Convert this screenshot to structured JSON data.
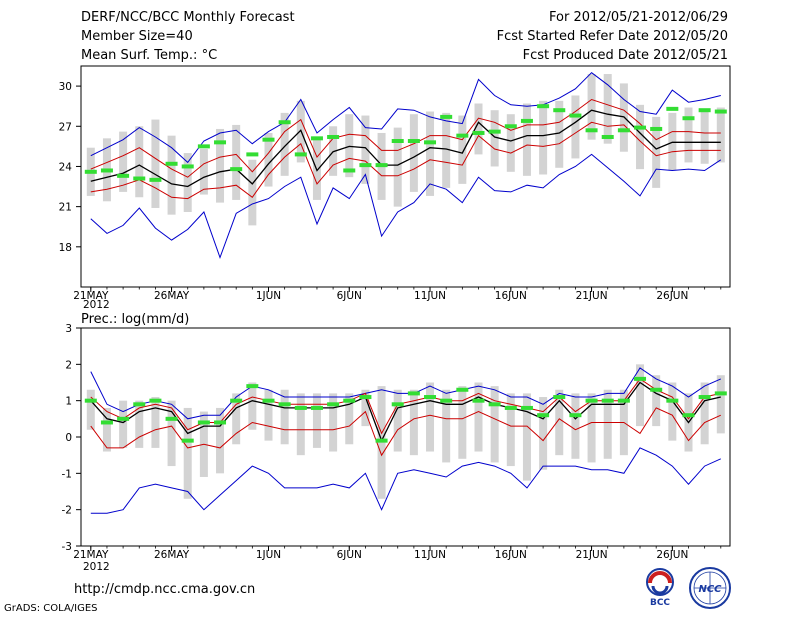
{
  "header": {
    "title": "DERF/NCC/BCC Monthly Forecast",
    "member_size": "Member Size=40",
    "variable": "Mean Surf. Temp.: °C",
    "forecast_period": "For 2012/05/21-2012/06/29",
    "start_refer_date": "Fcst Started Refer Date 2012/05/20",
    "produced_date": "Fcst Produced Date 2012/05/21"
  },
  "footer": {
    "url": "http://cmdp.ncc.cma.gov.cn",
    "credit": "GrADS: COLA/IGES"
  },
  "logos": {
    "bcc": "BCC",
    "ncc": "NCC"
  },
  "colors": {
    "ensemble_range": "#0000cc",
    "spread_band": "#cc0000",
    "ensemble_mean": "#000000",
    "box": "#d3d3d3",
    "marker": "#33dd33"
  },
  "chart_data": [
    {
      "type": "line",
      "title": "Mean Surf. Temp.: °C",
      "xlabel": "",
      "ylabel": "°C",
      "ylim": [
        15,
        31.5
      ],
      "yticks": [
        18,
        21,
        24,
        27,
        30
      ],
      "x_tick_labels": [
        "21MAY",
        "26MAY",
        "1JUN",
        "6JUN",
        "11JUN",
        "16JUN",
        "21JUN",
        "26JUN"
      ],
      "x_tick_days": [
        0,
        5,
        11,
        16,
        21,
        26,
        31,
        36
      ],
      "year_label": "2012",
      "days": [
        0,
        1,
        2,
        3,
        4,
        5,
        6,
        7,
        8,
        9,
        10,
        11,
        12,
        13,
        14,
        15,
        16,
        17,
        18,
        19,
        20,
        21,
        22,
        23,
        24,
        25,
        26,
        27,
        28,
        29,
        30,
        31,
        32,
        33,
        34,
        35,
        36,
        37,
        38,
        39
      ],
      "series": [
        {
          "name": "ensemble max",
          "color": "#0000cc",
          "values": [
            24.8,
            25.4,
            26.0,
            26.9,
            26.2,
            25.4,
            24.3,
            25.9,
            26.5,
            26.7,
            25.7,
            26.6,
            27.3,
            29.0,
            26.5,
            27.5,
            28.4,
            26.9,
            26.8,
            28.3,
            28.2,
            27.7,
            27.4,
            27.2,
            30.5,
            29.3,
            28.6,
            28.5,
            28.6,
            29.1,
            29.8,
            31.0,
            30.1,
            29.0,
            28.1,
            27.9,
            29.7,
            28.8,
            29.0,
            29.3
          ]
        },
        {
          "name": "upper spread",
          "color": "#cc0000",
          "values": [
            23.8,
            24.3,
            24.8,
            25.4,
            24.6,
            23.8,
            23.2,
            24.2,
            24.7,
            24.9,
            23.6,
            25.0,
            26.6,
            27.5,
            24.7,
            26.1,
            26.4,
            26.3,
            25.2,
            25.2,
            25.7,
            26.3,
            26.3,
            26.0,
            27.6,
            27.3,
            26.7,
            27.1,
            27.1,
            27.3,
            28.1,
            29.0,
            28.6,
            28.2,
            27.2,
            26.0,
            26.6,
            26.6,
            26.5,
            26.5
          ]
        },
        {
          "name": "ensemble mean",
          "color": "#000000",
          "values": [
            22.9,
            23.2,
            23.5,
            24.1,
            23.4,
            22.7,
            22.5,
            23.2,
            23.6,
            23.8,
            22.7,
            24.2,
            25.5,
            26.7,
            23.7,
            25.1,
            25.5,
            25.4,
            24.1,
            24.1,
            24.7,
            25.4,
            25.3,
            25.0,
            27.3,
            26.2,
            25.9,
            26.3,
            26.3,
            26.5,
            27.3,
            28.2,
            27.9,
            27.7,
            26.5,
            25.3,
            25.8,
            25.8,
            25.8,
            25.8
          ]
        },
        {
          "name": "lower spread",
          "color": "#cc0000",
          "values": [
            22.1,
            22.3,
            22.6,
            23.0,
            22.4,
            21.7,
            21.6,
            22.3,
            22.4,
            22.6,
            21.7,
            23.4,
            24.7,
            25.7,
            22.7,
            24.1,
            24.6,
            24.4,
            23.3,
            23.3,
            23.8,
            24.5,
            24.3,
            24.1,
            26.3,
            25.3,
            25.0,
            25.6,
            25.5,
            25.7,
            26.5,
            27.3,
            27.0,
            27.1,
            25.9,
            24.8,
            25.1,
            25.2,
            25.2,
            25.2
          ]
        },
        {
          "name": "ensemble min",
          "color": "#0000cc",
          "values": [
            20.1,
            19.0,
            19.6,
            20.9,
            19.4,
            18.5,
            19.3,
            20.6,
            17.2,
            20.5,
            21.2,
            21.6,
            22.5,
            23.2,
            19.7,
            22.4,
            21.6,
            23.4,
            18.8,
            20.6,
            21.3,
            22.7,
            22.3,
            21.3,
            23.2,
            22.2,
            22.1,
            22.6,
            22.4,
            23.4,
            24.0,
            24.9,
            23.9,
            22.9,
            21.8,
            23.8,
            23.7,
            23.8,
            23.7,
            24.5
          ]
        },
        {
          "name": "box top",
          "color": "#d3d3d3",
          "values": [
            25.4,
            26.1,
            26.6,
            27.0,
            27.5,
            26.3,
            25.0,
            25.3,
            26.8,
            27.1,
            24.5,
            26.5,
            28.0,
            28.9,
            26.2,
            27.0,
            27.9,
            27.8,
            26.5,
            26.9,
            27.9,
            28.1,
            28.0,
            27.8,
            28.7,
            28.2,
            27.9,
            28.7,
            28.9,
            28.9,
            29.3,
            30.9,
            30.9,
            30.2,
            28.6,
            27.7,
            28.0,
            28.4,
            28.1,
            28.4
          ]
        },
        {
          "name": "box bottom",
          "color": "#d3d3d3",
          "values": [
            21.8,
            21.4,
            22.1,
            21.7,
            20.9,
            20.4,
            20.6,
            21.9,
            21.3,
            21.5,
            19.6,
            22.5,
            23.3,
            24.3,
            21.5,
            23.3,
            23.2,
            22.7,
            21.5,
            21.0,
            22.1,
            21.8,
            22.4,
            22.7,
            24.9,
            24.0,
            23.6,
            23.3,
            23.4,
            23.9,
            24.6,
            26.0,
            25.7,
            25.1,
            23.8,
            22.4,
            23.7,
            24.3,
            24.2,
            24.3
          ]
        },
        {
          "name": "green marker",
          "color": "#33dd33",
          "values": [
            23.6,
            23.7,
            23.3,
            23.1,
            23.0,
            24.2,
            24.0,
            25.5,
            25.8,
            23.8,
            24.9,
            26.0,
            27.3,
            24.9,
            26.1,
            26.2,
            23.7,
            24.1,
            24.1,
            25.9,
            25.9,
            25.8,
            27.7,
            26.3,
            26.5,
            26.6,
            27.0,
            27.4,
            28.5,
            28.2,
            27.8,
            26.7,
            26.2,
            26.7,
            26.9,
            26.8,
            28.3,
            27.6,
            28.2,
            28.1
          ]
        }
      ]
    },
    {
      "type": "line",
      "title": "Prec.: log(mm/d)",
      "xlabel": "",
      "ylabel": "log(mm/d)",
      "ylim": [
        -3,
        3
      ],
      "yticks": [
        -3,
        -2,
        -1,
        0,
        1,
        2,
        3
      ],
      "x_tick_labels": [
        "21MAY",
        "26MAY",
        "1JUN",
        "6JUN",
        "11JUN",
        "16JUN",
        "21JUN",
        "26JUN"
      ],
      "x_tick_days": [
        0,
        5,
        11,
        16,
        21,
        26,
        31,
        36
      ],
      "year_label": "2012",
      "days": [
        0,
        1,
        2,
        3,
        4,
        5,
        6,
        7,
        8,
        9,
        10,
        11,
        12,
        13,
        14,
        15,
        16,
        17,
        18,
        19,
        20,
        21,
        22,
        23,
        24,
        25,
        26,
        27,
        28,
        29,
        30,
        31,
        32,
        33,
        34,
        35,
        36,
        37,
        38,
        39
      ],
      "series": [
        {
          "name": "ensemble max",
          "color": "#0000cc",
          "values": [
            1.8,
            0.9,
            0.7,
            0.9,
            1.0,
            0.9,
            0.5,
            0.6,
            0.6,
            1.1,
            1.4,
            1.3,
            1.1,
            1.1,
            1.1,
            1.1,
            1.1,
            1.2,
            1.3,
            1.2,
            1.2,
            1.4,
            1.2,
            1.3,
            1.4,
            1.3,
            1.1,
            1.1,
            0.9,
            1.2,
            1.1,
            1.1,
            1.2,
            1.2,
            1.9,
            1.6,
            1.4,
            1.1,
            1.4,
            1.6
          ]
        },
        {
          "name": "upper spread",
          "color": "#cc0000",
          "values": [
            1.1,
            0.7,
            0.5,
            0.8,
            0.9,
            0.8,
            0.2,
            0.4,
            0.4,
            0.9,
            1.1,
            1.0,
            0.9,
            0.9,
            0.9,
            0.9,
            1.0,
            1.2,
            0.1,
            0.9,
            1.0,
            1.1,
            1.0,
            1.0,
            1.2,
            1.0,
            0.9,
            0.8,
            0.7,
            1.1,
            0.7,
            1.0,
            1.0,
            1.0,
            1.6,
            1.3,
            1.1,
            0.5,
            1.1,
            1.2
          ]
        },
        {
          "name": "ensemble mean",
          "color": "#000000",
          "values": [
            1.0,
            0.5,
            0.4,
            0.7,
            0.8,
            0.7,
            0.1,
            0.3,
            0.3,
            0.8,
            1.0,
            0.9,
            0.8,
            0.8,
            0.8,
            0.8,
            0.9,
            1.1,
            -0.1,
            0.8,
            0.9,
            1.0,
            0.9,
            0.9,
            1.1,
            0.9,
            0.8,
            0.7,
            0.5,
            1.0,
            0.5,
            0.9,
            0.9,
            0.9,
            1.5,
            1.2,
            1.0,
            0.4,
            1.0,
            1.1
          ]
        },
        {
          "name": "lower spread",
          "color": "#cc0000",
          "values": [
            0.3,
            -0.3,
            -0.3,
            0.0,
            0.2,
            0.3,
            -0.3,
            -0.2,
            -0.3,
            0.1,
            0.4,
            0.3,
            0.2,
            0.2,
            0.2,
            0.2,
            0.3,
            0.7,
            -0.5,
            0.2,
            0.5,
            0.6,
            0.5,
            0.5,
            0.7,
            0.5,
            0.3,
            0.3,
            -0.1,
            0.5,
            0.2,
            0.4,
            0.4,
            0.4,
            0.1,
            0.8,
            0.6,
            -0.1,
            0.4,
            0.6
          ]
        },
        {
          "name": "ensemble min",
          "color": "#0000cc",
          "values": [
            -2.1,
            -2.1,
            -2.0,
            -1.4,
            -1.3,
            -1.4,
            -1.5,
            -2.0,
            -1.6,
            -1.2,
            -0.8,
            -1.0,
            -1.4,
            -1.4,
            -1.4,
            -1.3,
            -1.4,
            -1.0,
            -2.0,
            -1.0,
            -0.9,
            -1.0,
            -1.1,
            -0.8,
            -0.7,
            -0.8,
            -1.0,
            -1.4,
            -0.8,
            -0.8,
            -0.8,
            -0.9,
            -0.9,
            -1.0,
            -0.3,
            -0.5,
            -0.8,
            -1.3,
            -0.8,
            -0.6
          ]
        },
        {
          "name": "box top",
          "color": "#d3d3d3",
          "values": [
            1.3,
            0.8,
            1.0,
            1.0,
            1.1,
            1.0,
            0.8,
            0.7,
            0.8,
            1.2,
            1.5,
            1.3,
            1.3,
            1.2,
            1.2,
            1.2,
            1.2,
            1.3,
            1.4,
            1.3,
            1.3,
            1.5,
            1.3,
            1.4,
            1.5,
            1.4,
            1.2,
            1.2,
            1.1,
            1.3,
            1.2,
            1.2,
            1.3,
            1.3,
            2.0,
            1.7,
            1.5,
            1.2,
            1.5,
            1.7
          ]
        },
        {
          "name": "box bottom",
          "color": "#d3d3d3",
          "values": [
            0.2,
            -0.4,
            -0.3,
            -0.3,
            -0.3,
            -0.8,
            -1.7,
            -1.1,
            -1.0,
            -0.2,
            0.2,
            -0.1,
            -0.2,
            -0.5,
            -0.3,
            -0.4,
            -0.2,
            0.3,
            -1.7,
            -0.4,
            -0.5,
            -0.4,
            -0.7,
            -0.6,
            -0.4,
            -0.7,
            -0.8,
            -1.2,
            -0.9,
            -0.5,
            -0.6,
            -0.7,
            -0.6,
            -0.5,
            0.3,
            0.3,
            -0.1,
            -0.4,
            -0.2,
            0.1
          ]
        },
        {
          "name": "green marker",
          "color": "#33dd33",
          "values": [
            1.0,
            0.4,
            0.5,
            0.9,
            1.0,
            0.5,
            -0.1,
            0.4,
            0.4,
            1.0,
            1.4,
            1.0,
            0.9,
            0.8,
            0.8,
            0.9,
            1.0,
            1.1,
            -0.1,
            0.9,
            1.2,
            1.1,
            1.0,
            1.3,
            1.0,
            0.9,
            0.8,
            0.8,
            0.6,
            1.1,
            0.6,
            1.0,
            1.0,
            1.0,
            1.6,
            1.3,
            1.0,
            0.6,
            1.1,
            1.2
          ]
        }
      ]
    }
  ]
}
